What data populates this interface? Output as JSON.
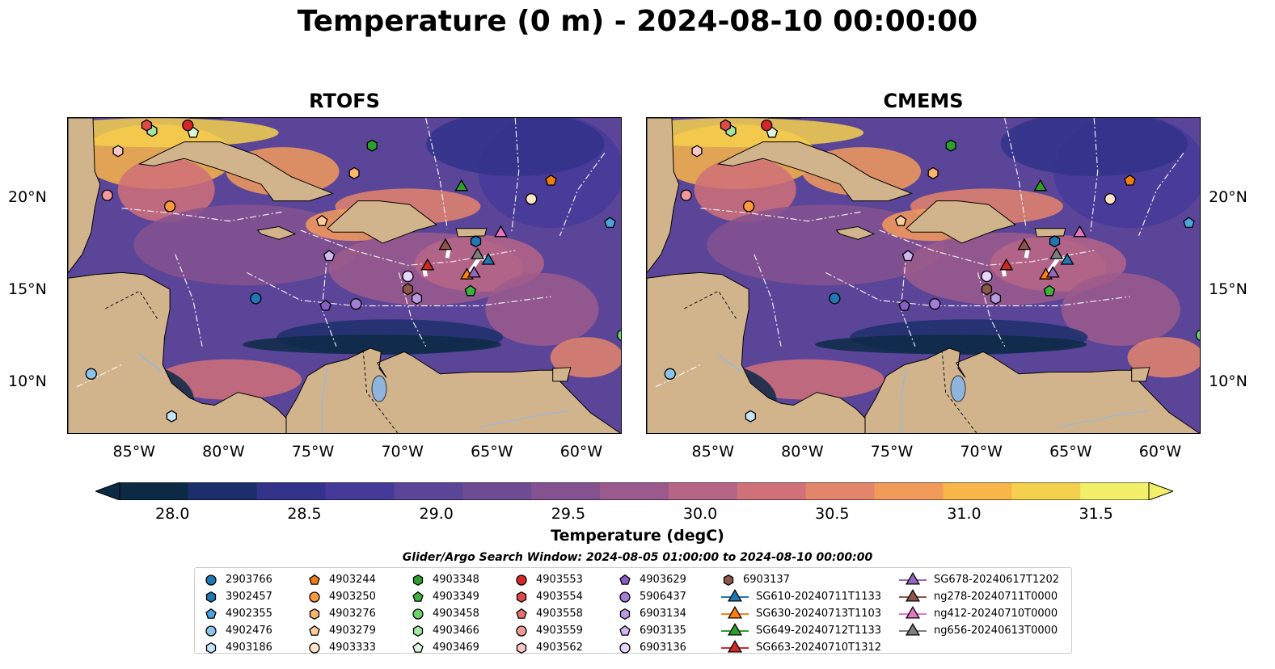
{
  "title": "Temperature (0 m) - 2024-08-10 00:00:00",
  "panels": [
    {
      "name": "RTOFS"
    },
    {
      "name": "CMEMS"
    }
  ],
  "axes": {
    "lon_ticks": [
      "85°W",
      "80°W",
      "75°W",
      "70°W",
      "65°W",
      "60°W"
    ],
    "lat_ticks": [
      "20°N",
      "15°N",
      "10°N"
    ],
    "lon_range": [
      -89,
      -58
    ],
    "lat_range": [
      7.2,
      24.4
    ]
  },
  "colorbar": {
    "label": "Temperature (degC)",
    "ticks": [
      "28.0",
      "28.5",
      "29.0",
      "29.5",
      "30.0",
      "30.5",
      "31.0",
      "31.5"
    ],
    "range": [
      27.8,
      31.7
    ],
    "extend": "both",
    "colors": [
      "#0d2a45",
      "#1d2f6b",
      "#33338a",
      "#453a99",
      "#5a4598",
      "#6e4c94",
      "#855291",
      "#9c5a8c",
      "#b66587",
      "#d07078",
      "#e4846b",
      "#f29a5a",
      "#f8b548",
      "#f5d04c",
      "#f2ef6a"
    ]
  },
  "search_window": "Glider/Argo Search Window: 2024-08-05 01:00:00 to 2024-08-10 00:00:00",
  "legend": {
    "columns": [
      [
        {
          "label": "2903766",
          "marker": "circle",
          "color": "#1f77b4"
        },
        {
          "label": "3902457",
          "marker": "hexagon",
          "color": "#1f77b4"
        },
        {
          "label": "4902355",
          "marker": "pentagon",
          "color": "#4da3e0"
        },
        {
          "label": "4902476",
          "marker": "circle",
          "color": "#8cc3ea"
        },
        {
          "label": "4903186",
          "marker": "hexagon",
          "color": "#c6e3f7"
        }
      ],
      [
        {
          "label": "4903244",
          "marker": "pentagon",
          "color": "#f07f11"
        },
        {
          "label": "4903250",
          "marker": "circle",
          "color": "#fa9a3c"
        },
        {
          "label": "4903276",
          "marker": "hexagon",
          "color": "#fdb46d"
        },
        {
          "label": "4903279",
          "marker": "pentagon",
          "color": "#fdcd9c"
        },
        {
          "label": "4903333",
          "marker": "circle",
          "color": "#fde4c8"
        }
      ],
      [
        {
          "label": "4903348",
          "marker": "hexagon",
          "color": "#2ca02c"
        },
        {
          "label": "4903349",
          "marker": "pentagon",
          "color": "#3cb43c"
        },
        {
          "label": "4903458",
          "marker": "circle",
          "color": "#6fd26f"
        },
        {
          "label": "4903466",
          "marker": "hexagon",
          "color": "#a5e6a5"
        },
        {
          "label": "4903469",
          "marker": "pentagon",
          "color": "#dcf5dc"
        }
      ],
      [
        {
          "label": "4903553",
          "marker": "circle",
          "color": "#d62728"
        },
        {
          "label": "4903554",
          "marker": "hexagon",
          "color": "#e04a4a"
        },
        {
          "label": "4903558",
          "marker": "pentagon",
          "color": "#e87070"
        },
        {
          "label": "4903559",
          "marker": "circle",
          "color": "#f09a9a"
        },
        {
          "label": "4903562",
          "marker": "hexagon",
          "color": "#f8c8c8"
        }
      ],
      [
        {
          "label": "4903629",
          "marker": "pentagon",
          "color": "#8a5cc7"
        },
        {
          "label": "5906437",
          "marker": "circle",
          "color": "#a27ed6"
        },
        {
          "label": "6903134",
          "marker": "hexagon",
          "color": "#b99ae3"
        },
        {
          "label": "6903135",
          "marker": "pentagon",
          "color": "#d0b8ef"
        },
        {
          "label": "6903136",
          "marker": "circle",
          "color": "#e6d6fa"
        }
      ],
      [
        {
          "label": "6903137",
          "marker": "hexagon",
          "color": "#8c564b"
        },
        {
          "label": "SG610-20240711T1133",
          "marker": "triangle",
          "color": "#1f77b4"
        },
        {
          "label": "SG630-20240713T1103",
          "marker": "triangle",
          "color": "#ff7f0e"
        },
        {
          "label": "SG649-20240712T1133",
          "marker": "triangle",
          "color": "#2ca02c"
        },
        {
          "label": "SG663-20240710T1312",
          "marker": "triangle",
          "color": "#d62728"
        }
      ],
      [
        {
          "label": "SG678-20240617T1202",
          "marker": "triangle",
          "color": "#9467bd"
        },
        {
          "label": "ng278-20240711T0000",
          "marker": "triangle",
          "color": "#8c564b"
        },
        {
          "label": "ng412-20240710T0000",
          "marker": "triangle",
          "color": "#e377c2"
        },
        {
          "label": "ng656-20240613T0000",
          "marker": "triangle",
          "color": "#7f7f7f"
        }
      ]
    ]
  },
  "markers": [
    {
      "id": "2903766",
      "lon": -78.5,
      "lat": 14.6
    },
    {
      "id": "3902457",
      "lon": -66.2,
      "lat": 17.7
    },
    {
      "id": "4902355",
      "lon": -58.7,
      "lat": 18.7
    },
    {
      "id": "4902476",
      "lon": -87.7,
      "lat": 10.5
    },
    {
      "id": "4903186",
      "lon": -83.2,
      "lat": 8.2
    },
    {
      "id": "4903244",
      "lon": -62.0,
      "lat": 21.0
    },
    {
      "id": "4903276",
      "lon": -73.0,
      "lat": 21.4
    },
    {
      "id": "4903279",
      "lon": -74.8,
      "lat": 18.8
    },
    {
      "id": "4903333",
      "lon": -63.1,
      "lat": 20.0
    },
    {
      "id": "4903348",
      "lon": -72.0,
      "lat": 22.9
    },
    {
      "id": "4903349",
      "lon": -66.5,
      "lat": 15.0
    },
    {
      "id": "4903458",
      "lon": -58.0,
      "lat": 12.6
    },
    {
      "id": "4903466",
      "lon": -84.3,
      "lat": 23.7
    },
    {
      "id": "4903469",
      "lon": -82.0,
      "lat": 23.6
    },
    {
      "id": "4903553",
      "lon": -82.3,
      "lat": 24.0
    },
    {
      "id": "4903554",
      "lon": -84.6,
      "lat": 24.0
    },
    {
      "id": "4903559",
      "lon": -86.8,
      "lat": 20.2
    },
    {
      "id": "4903562",
      "lon": -86.2,
      "lat": 22.6
    },
    {
      "id": "4903250",
      "lon": -83.3,
      "lat": 19.6
    },
    {
      "id": "4903629",
      "lon": -74.6,
      "lat": 14.2
    },
    {
      "id": "5906437",
      "lon": -72.9,
      "lat": 14.3
    },
    {
      "id": "6903134",
      "lon": -69.5,
      "lat": 14.6
    },
    {
      "id": "6903135",
      "lon": -74.4,
      "lat": 16.9
    },
    {
      "id": "6903136",
      "lon": -70.0,
      "lat": 15.8
    },
    {
      "id": "6903137",
      "lon": -70.0,
      "lat": 15.1
    },
    {
      "id": "SG610-20240711T1133",
      "lon": -65.5,
      "lat": 16.7
    },
    {
      "id": "SG630-20240713T1103",
      "lon": -66.7,
      "lat": 15.9
    },
    {
      "id": "SG649-20240712T1133",
      "lon": -67.0,
      "lat": 20.7
    },
    {
      "id": "SG663-20240710T1312",
      "lon": -68.9,
      "lat": 16.4
    },
    {
      "id": "SG678-20240617T1202",
      "lon": -66.3,
      "lat": 16.0
    },
    {
      "id": "ng278-20240711T0000",
      "lon": -67.9,
      "lat": 17.5
    },
    {
      "id": "ng412-20240710T0000",
      "lon": -64.8,
      "lat": 18.2
    },
    {
      "id": "ng656-20240613T0000",
      "lon": -66.1,
      "lat": 17.0
    }
  ]
}
